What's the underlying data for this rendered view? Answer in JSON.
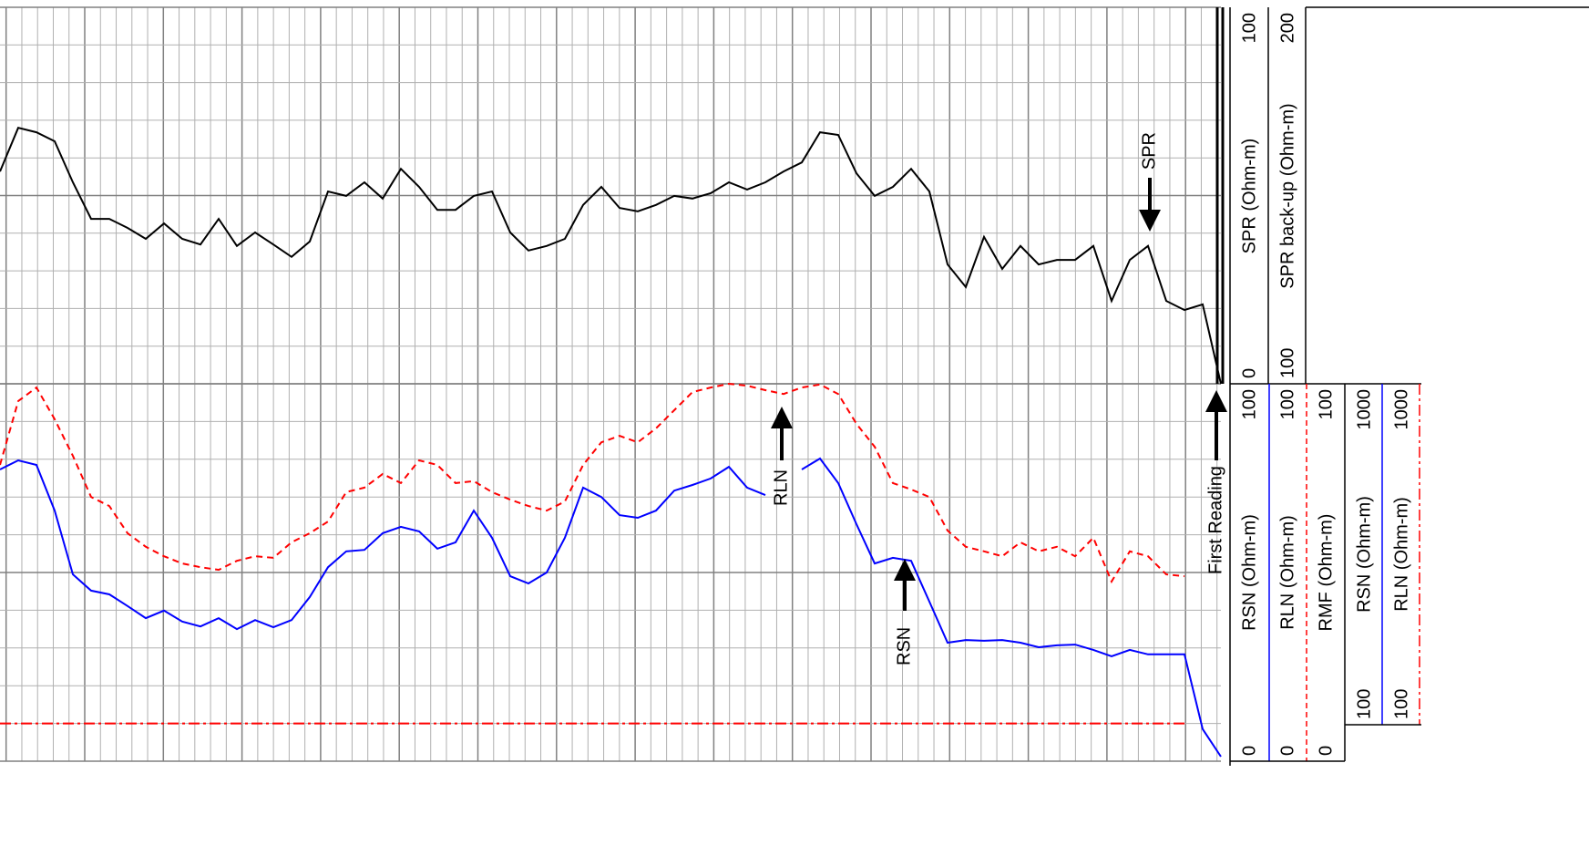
{
  "chart_data": {
    "type": "line",
    "tracks": [
      {
        "ylim": [
          0,
          100
        ],
        "series": [
          {
            "color": "#000000",
            "values": [
              56.4,
              68.0,
              66.8,
              64.4,
              53.5,
              43.8,
              43.8,
              41.4,
              38.5,
              42.6,
              38.5,
              37.0,
              43.8,
              36.6,
              40.2,
              37.0,
              33.7,
              37.8,
              51.1,
              49.9,
              53.5,
              49.2,
              57.1,
              52.3,
              46.2,
              46.2,
              49.9,
              51.1,
              40.2,
              35.4,
              36.6,
              38.5,
              47.5,
              52.3,
              46.7,
              45.8,
              47.5,
              49.9,
              49.2,
              50.6,
              53.5,
              51.6,
              53.5,
              56.4,
              58.8,
              66.8,
              66.1,
              55.9,
              49.9,
              52.3,
              57.1,
              51.1,
              31.7,
              25.7,
              39.0,
              30.5,
              36.6,
              31.7,
              32.9,
              32.9,
              36.6,
              22.0,
              32.9,
              36.6,
              22.0,
              19.6,
              21.1,
              0
            ]
          }
        ]
      },
      {
        "ylim": [
          0,
          100
        ],
        "series": [
          {
            "color": "#0000ff",
            "values": [
              77.3,
              79.7,
              78.5,
              66.4,
              49.5,
              45.2,
              44.2,
              41.1,
              37.9,
              39.9,
              37.0,
              35.7,
              37.9,
              35.0,
              37.4,
              35.5,
              37.4,
              43.5,
              51.4,
              55.6,
              56.0,
              60.4,
              62.1,
              60.9,
              56.3,
              58.0,
              66.4,
              59.2,
              49.0,
              47.1,
              50.0,
              59.2,
              72.5,
              70.0,
              65.2,
              64.5,
              66.4,
              71.7,
              73.2,
              74.9,
              78.0,
              72.5,
              70.5,
              null,
              77.3,
              80.2,
              73.7,
              62.8,
              52.4,
              53.9,
              53.1,
              42.3,
              31.4,
              32.1,
              31.9,
              32.1,
              31.4,
              30.2,
              30.7,
              30.9,
              29.5,
              27.8,
              29.5,
              28.3,
              28.3,
              28.3,
              8.5,
              1.2
            ]
          },
          {
            "color": "#ff0000",
            "dash": "7,5",
            "values": [
              78.5,
              95.4,
              99.0,
              90.6,
              80.9,
              70.0,
              67.6,
              60.4,
              56.8,
              54.3,
              52.4,
              51.4,
              50.7,
              53.1,
              54.3,
              53.9,
              58.0,
              60.4,
              63.5,
              71.3,
              72.5,
              76.1,
              73.7,
              79.7,
              78.5,
              73.7,
              74.2,
              71.3,
              69.3,
              67.6,
              66.4,
              68.8,
              78.5,
              84.5,
              86.2,
              84.5,
              88.2,
              93.0,
              97.8,
              99.0,
              100,
              99.5,
              98.3,
              97.3,
              99.0,
              99.8,
              97.3,
              89.4,
              83.3,
              73.7,
              72.0,
              70.0,
              61.1,
              56.8,
              55.6,
              54.3,
              58.0,
              55.6,
              56.8,
              54.3,
              59.2,
              47.6,
              55.6,
              54.3,
              49.5,
              49.0,
              null,
              null
            ]
          },
          {
            "color": "#ff0000",
            "dash": "12,4,3,4",
            "values": [
              10,
              10,
              10,
              10,
              10,
              10,
              10,
              10,
              10,
              10,
              10,
              10,
              10,
              10,
              10,
              10,
              10,
              10,
              10,
              10,
              10,
              10,
              10,
              10,
              10,
              10,
              10,
              10,
              10,
              10,
              10,
              10,
              10,
              10,
              10,
              10,
              10,
              10,
              10,
              10,
              10,
              10,
              10,
              10,
              10,
              10,
              10,
              10,
              10,
              10,
              10,
              10,
              10,
              10,
              10,
              10,
              10,
              10,
              10,
              10,
              10,
              10,
              10,
              10,
              10,
              10,
              null,
              null
            ]
          }
        ]
      }
    ],
    "scales": [
      {
        "name": "SPR (Ohm-m)",
        "min": 0,
        "max": 100
      },
      {
        "name": "SPR back-up (Ohm-m)",
        "min": 100,
        "max": 200
      },
      {
        "name": "RSN (Ohm-m)",
        "min": 0,
        "max": 100
      },
      {
        "name": "RLN (Ohm-m)",
        "min": 0,
        "max": 100
      },
      {
        "name": "RMF (Ohm-m)",
        "min": 0,
        "max": 100
      },
      {
        "name": "RSN (Ohm-m)",
        "min": 100,
        "max": 1000
      },
      {
        "name": "RLN (Ohm-m)",
        "min": 100,
        "max": 1000
      }
    ],
    "annotations": [
      "SPR",
      "RLN",
      "RSN",
      "First Reading"
    ]
  }
}
